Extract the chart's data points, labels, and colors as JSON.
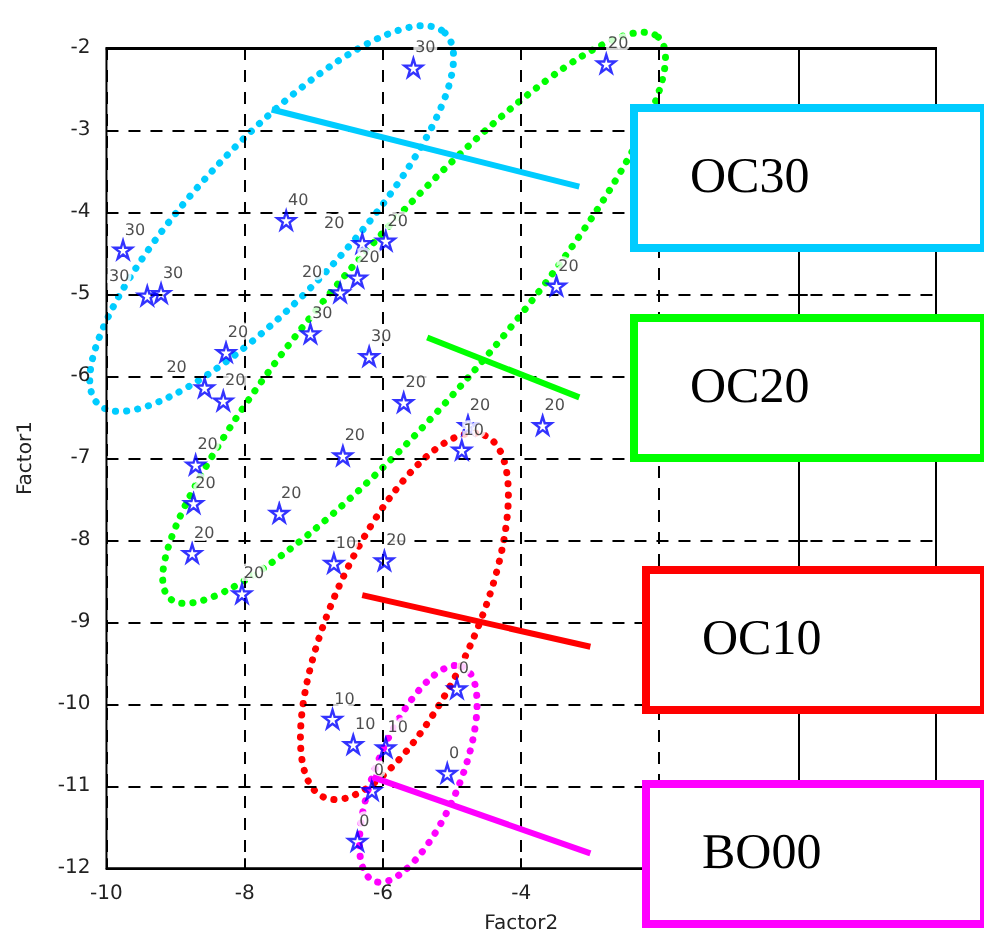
{
  "chart_data": {
    "type": "scatter",
    "xlabel": "Factor2",
    "ylabel": "Factor1",
    "marker": "star",
    "grid": true,
    "xlim": [
      -10,
      2
    ],
    "xticks": [
      -10,
      -8,
      -6,
      -4,
      {
        "value": -2,
        "label": null
      },
      {
        "value": 0,
        "label": null
      }
    ],
    "ylim": [
      -12,
      -2
    ],
    "yticks": [
      -12,
      -11,
      -10,
      -9,
      -8,
      -7,
      -6,
      -5,
      -4,
      -3,
      -2
    ],
    "series": [
      {
        "name": "40",
        "color": "#0000ff",
        "x": [
          -7.4
        ],
        "values": [
          -4.1
        ]
      },
      {
        "name": "30",
        "color": "#0000ff",
        "x": [
          -5.56,
          -9.76,
          -9.41,
          -9.21,
          -7.05,
          -6.2
        ],
        "values": [
          -2.24,
          -4.46,
          -5.02,
          -4.99,
          -5.48,
          -5.76
        ]
      },
      {
        "name": "20",
        "color": "#0000ff",
        "x": [
          -2.77,
          -6.3,
          -5.96,
          -3.49,
          -6.37,
          -6.62,
          -8.27,
          -8.58,
          -8.31,
          -5.7,
          -4.77,
          -3.69,
          -8.71,
          -6.58,
          -8.74,
          -7.5,
          -8.76,
          -5.98,
          -8.04
        ],
        "values": [
          -2.19,
          -4.38,
          -4.35,
          -4.9,
          -4.8,
          -4.98,
          -5.71,
          -6.14,
          -6.3,
          -6.32,
          -6.6,
          -6.6,
          -7.08,
          -6.97,
          -7.55,
          -7.67,
          -8.16,
          -8.25,
          -8.65
        ]
      },
      {
        "name": "10",
        "color": "#0000ff",
        "x": [
          -4.86,
          -6.71,
          -6.73,
          -6.43,
          -5.96
        ],
        "values": [
          -6.9,
          -8.28,
          -10.18,
          -10.49,
          -10.53
        ]
      },
      {
        "name": "0",
        "color": "#0000ff",
        "x": [
          -4.93,
          -5.07,
          -6.16,
          -6.37
        ],
        "values": [
          -9.81,
          -10.84,
          -11.05,
          -11.67
        ]
      },
      {
        "type": "line",
        "marker": "none",
        "color": "#00ccff",
        "x": [
          -7.61,
          -3.16
        ],
        "values": [
          -2.75,
          -3.69
        ]
      },
      {
        "type": "line",
        "marker": "none",
        "color": "#00ff00",
        "x": [
          -5.36,
          -3.16
        ],
        "values": [
          -5.53,
          -6.26
        ]
      },
      {
        "type": "line",
        "marker": "none",
        "color": "#ff0000",
        "x": [
          -6.3,
          -3.0
        ],
        "values": [
          -8.67,
          -9.3
        ]
      },
      {
        "type": "line",
        "marker": "none",
        "color": "#ff00ff",
        "x": [
          -6.15,
          -3.0
        ],
        "values": [
          -10.89,
          -11.82
        ]
      }
    ],
    "annotations": [
      "OC30",
      "OC20",
      "OC10",
      "BO00"
    ]
  }
}
